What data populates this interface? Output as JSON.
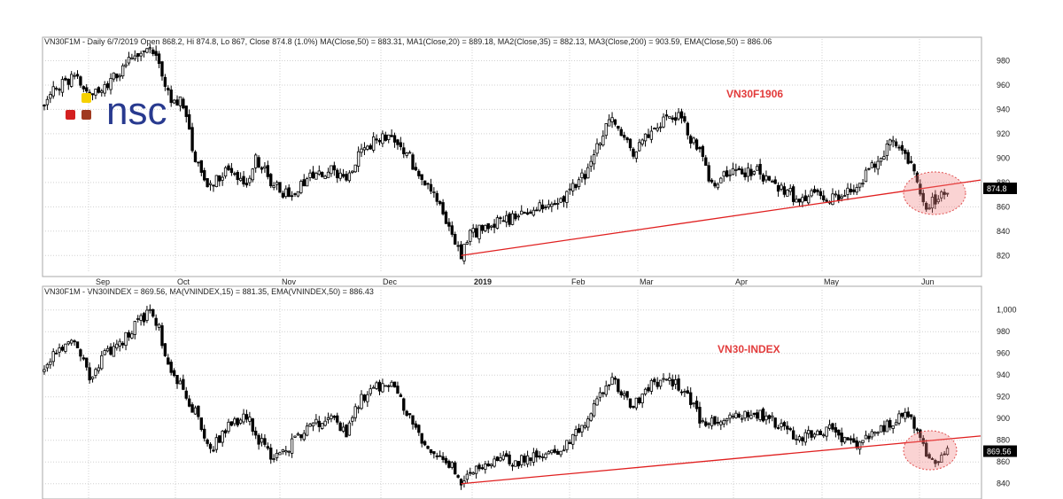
{
  "chart_data": [
    {
      "type": "candlestick",
      "header": "VN30F1M - Daily 6/7/2019 Open 868.2, Hi 874.8, Lo 867, Close 874.8 (1.0%) MA(Close,50) = 883.31, MA1(Close,20) = 889.18, MA2(Close,35) = 882.13, MA3(Close,200) = 903.59, EMA(Close,50) = 886.06",
      "series_label": "VN30F1906",
      "y_ticks": [
        "820",
        "840",
        "860",
        "880",
        "900",
        "920",
        "940",
        "960",
        "980"
      ],
      "ylim": [
        810,
        992
      ],
      "last_value_label": "874.8",
      "months": [
        "Sep",
        "Oct",
        "Nov",
        "Dec",
        "2019",
        "Feb",
        "Mar",
        "Apr",
        "May",
        "Jun"
      ],
      "anchors": [
        [
          0,
          945
        ],
        [
          5,
          960
        ],
        [
          10,
          968
        ],
        [
          15,
          952
        ],
        [
          20,
          956
        ],
        [
          25,
          972
        ],
        [
          30,
          985
        ],
        [
          35,
          988
        ],
        [
          38,
          975
        ],
        [
          42,
          945
        ],
        [
          45,
          950
        ],
        [
          50,
          900
        ],
        [
          55,
          875
        ],
        [
          60,
          890
        ],
        [
          65,
          885
        ],
        [
          68,
          880
        ],
        [
          70,
          898
        ],
        [
          75,
          882
        ],
        [
          80,
          870
        ],
        [
          85,
          878
        ],
        [
          90,
          886
        ],
        [
          95,
          890
        ],
        [
          100,
          885
        ],
        [
          105,
          905
        ],
        [
          110,
          915
        ],
        [
          115,
          920
        ],
        [
          120,
          905
        ],
        [
          125,
          880
        ],
        [
          130,
          865
        ],
        [
          135,
          840
        ],
        [
          138,
          822
        ],
        [
          140,
          835
        ],
        [
          145,
          842
        ],
        [
          150,
          848
        ],
        [
          155,
          850
        ],
        [
          160,
          856
        ],
        [
          165,
          860
        ],
        [
          170,
          862
        ],
        [
          175,
          875
        ],
        [
          180,
          890
        ],
        [
          185,
          920
        ],
        [
          188,
          935
        ],
        [
          190,
          920
        ],
        [
          195,
          905
        ],
        [
          200,
          920
        ],
        [
          205,
          930
        ],
        [
          210,
          935
        ],
        [
          215,
          912
        ],
        [
          218,
          900
        ],
        [
          220,
          880
        ],
        [
          225,
          885
        ],
        [
          230,
          888
        ],
        [
          235,
          890
        ],
        [
          240,
          882
        ],
        [
          245,
          875
        ],
        [
          250,
          865
        ],
        [
          255,
          870
        ],
        [
          260,
          868
        ],
        [
          265,
          872
        ],
        [
          270,
          880
        ],
        [
          275,
          895
        ],
        [
          280,
          912
        ],
        [
          285,
          905
        ],
        [
          288,
          890
        ],
        [
          290,
          875
        ],
        [
          292,
          862
        ],
        [
          295,
          866
        ],
        [
          298,
          873
        ]
      ],
      "trendline": [
        [
          138,
          820
        ],
        [
          310,
          882
        ]
      ]
    },
    {
      "type": "candlestick",
      "header": "VN30F1M - VN30INDEX = 869.56, MA(VNINDEX,15) = 881.35, EMA(VNINDEX,50) = 886.43",
      "series_label": "VN30-INDEX",
      "y_ticks": [
        "840",
        "860",
        "880",
        "900",
        "920",
        "940",
        "960",
        "980",
        "1,000"
      ],
      "ylim": [
        830,
        1012
      ],
      "last_value_label": "869.56",
      "anchors": [
        [
          0,
          945
        ],
        [
          5,
          965
        ],
        [
          10,
          975
        ],
        [
          15,
          935
        ],
        [
          20,
          960
        ],
        [
          25,
          968
        ],
        [
          30,
          985
        ],
        [
          35,
          998
        ],
        [
          38,
          982
        ],
        [
          42,
          940
        ],
        [
          45,
          930
        ],
        [
          50,
          905
        ],
        [
          55,
          870
        ],
        [
          60,
          890
        ],
        [
          65,
          900
        ],
        [
          68,
          898
        ],
        [
          70,
          885
        ],
        [
          75,
          865
        ],
        [
          80,
          872
        ],
        [
          85,
          885
        ],
        [
          90,
          895
        ],
        [
          95,
          900
        ],
        [
          100,
          885
        ],
        [
          105,
          920
        ],
        [
          110,
          928
        ],
        [
          115,
          932
        ],
        [
          120,
          905
        ],
        [
          125,
          880
        ],
        [
          130,
          868
        ],
        [
          135,
          855
        ],
        [
          138,
          840
        ],
        [
          140,
          850
        ],
        [
          145,
          858
        ],
        [
          150,
          862
        ],
        [
          155,
          860
        ],
        [
          160,
          863
        ],
        [
          165,
          868
        ],
        [
          170,
          866
        ],
        [
          175,
          885
        ],
        [
          180,
          900
        ],
        [
          185,
          925
        ],
        [
          188,
          940
        ],
        [
          190,
          925
        ],
        [
          195,
          910
        ],
        [
          200,
          930
        ],
        [
          205,
          935
        ],
        [
          210,
          930
        ],
        [
          215,
          912
        ],
        [
          218,
          895
        ],
        [
          220,
          898
        ],
        [
          225,
          902
        ],
        [
          230,
          904
        ],
        [
          235,
          905
        ],
        [
          240,
          900
        ],
        [
          245,
          890
        ],
        [
          250,
          882
        ],
        [
          255,
          886
        ],
        [
          260,
          890
        ],
        [
          265,
          880
        ],
        [
          270,
          875
        ],
        [
          275,
          888
        ],
        [
          280,
          895
        ],
        [
          285,
          905
        ],
        [
          288,
          895
        ],
        [
          290,
          880
        ],
        [
          292,
          865
        ],
        [
          295,
          862
        ],
        [
          298,
          869
        ]
      ],
      "trendline": [
        [
          138,
          840
        ],
        [
          310,
          884
        ]
      ]
    }
  ]
}
